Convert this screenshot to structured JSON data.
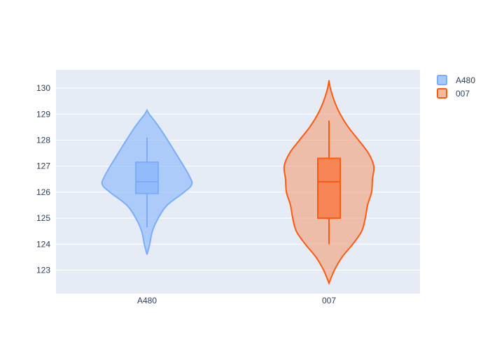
{
  "chart_data": {
    "type": "violin",
    "title": "",
    "xlabel": "",
    "ylabel": "",
    "categories": [
      "A480",
      "007"
    ],
    "ylim": [
      122.1,
      130.7
    ],
    "yticks": [
      123,
      124,
      125,
      126,
      127,
      128,
      129,
      130
    ],
    "grid": true,
    "legend_position": "top-right",
    "background_color": "#e5ecf6",
    "series": [
      {
        "name": "A480",
        "color": "#8ab6f9",
        "line_color": "#7aaefc",
        "range": [
          123.6,
          129.15
        ],
        "box": {
          "q1": 125.95,
          "median": 126.4,
          "q3": 127.15,
          "whisker_low": 124.65,
          "whisker_high": 128.1
        },
        "density": [
          [
            123.6,
            0.0
          ],
          [
            124.0,
            0.06
          ],
          [
            124.5,
            0.12
          ],
          [
            125.0,
            0.25
          ],
          [
            125.5,
            0.45
          ],
          [
            126.0,
            0.83
          ],
          [
            126.3,
            1.0
          ],
          [
            126.6,
            0.95
          ],
          [
            127.0,
            0.82
          ],
          [
            127.5,
            0.64
          ],
          [
            128.0,
            0.46
          ],
          [
            128.5,
            0.27
          ],
          [
            128.8,
            0.14
          ],
          [
            129.0,
            0.05
          ],
          [
            129.15,
            0.0
          ]
        ]
      },
      {
        "name": "007",
        "color": "#f4a07a",
        "line_color": "#fd5a0f",
        "range": [
          122.5,
          130.3
        ],
        "box": {
          "q1": 125.0,
          "median": 126.4,
          "q3": 127.3,
          "whisker_low": 124.0,
          "whisker_high": 128.75
        },
        "density": [
          [
            122.5,
            0.0
          ],
          [
            123.0,
            0.12
          ],
          [
            123.5,
            0.29
          ],
          [
            124.0,
            0.53
          ],
          [
            124.5,
            0.73
          ],
          [
            125.0,
            0.81
          ],
          [
            125.5,
            0.86
          ],
          [
            126.0,
            0.95
          ],
          [
            126.5,
            0.97
          ],
          [
            127.0,
            1.0
          ],
          [
            127.5,
            0.88
          ],
          [
            128.0,
            0.66
          ],
          [
            128.5,
            0.43
          ],
          [
            129.0,
            0.25
          ],
          [
            129.5,
            0.12
          ],
          [
            130.0,
            0.03
          ],
          [
            130.3,
            0.0
          ]
        ]
      }
    ]
  }
}
